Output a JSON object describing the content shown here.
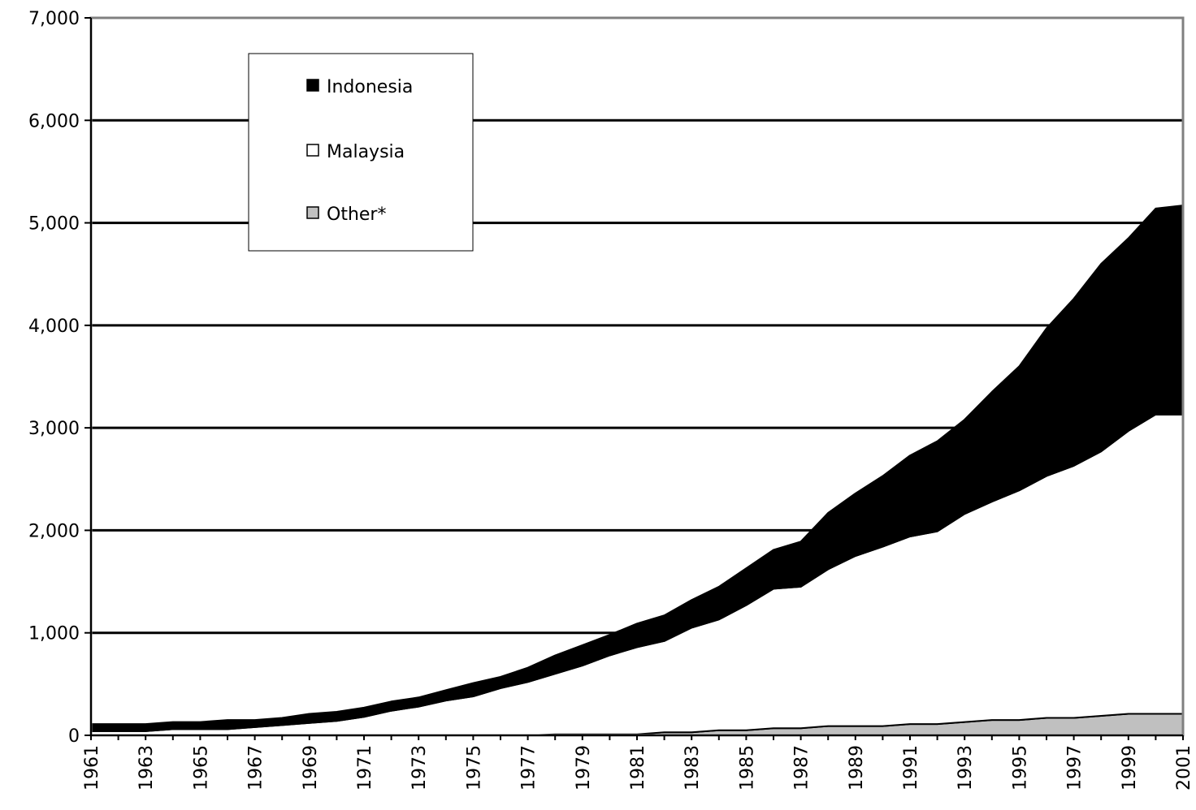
{
  "chart_data": {
    "type": "area",
    "stacked": true,
    "title": "",
    "xlabel": "",
    "ylabel": "",
    "ylim": [
      0,
      7000
    ],
    "y_ticks": [
      0,
      1000,
      2000,
      3000,
      4000,
      5000,
      6000,
      7000
    ],
    "y_tick_labels": [
      "0",
      "1,000",
      "2,000",
      "3,000",
      "4,000",
      "5,000",
      "6,000",
      "7,000"
    ],
    "x_tick_labels": [
      "1961",
      "1963",
      "1965",
      "1967",
      "1969",
      "1971",
      "1973",
      "1975",
      "1977",
      "1979",
      "1981",
      "1983",
      "1985",
      "1987",
      "1989",
      "1991",
      "1993",
      "1995",
      "1997",
      "1999",
      "2001"
    ],
    "x": [
      1961,
      1962,
      1963,
      1964,
      1965,
      1966,
      1967,
      1968,
      1969,
      1970,
      1971,
      1972,
      1973,
      1974,
      1975,
      1976,
      1977,
      1978,
      1979,
      1980,
      1981,
      1982,
      1983,
      1984,
      1985,
      1986,
      1987,
      1988,
      1989,
      1990,
      1991,
      1992,
      1993,
      1994,
      1995,
      1996,
      1997,
      1998,
      1999,
      2000,
      2001
    ],
    "grid": true,
    "legend_position": "top-left",
    "series": [
      {
        "name": "Other*",
        "color": "#c0c0c0",
        "values": [
          0,
          0,
          0,
          0,
          0,
          0,
          0,
          0,
          0,
          0,
          0,
          0,
          0,
          0,
          0,
          0,
          0,
          10,
          10,
          10,
          10,
          30,
          30,
          50,
          50,
          70,
          70,
          90,
          90,
          90,
          110,
          110,
          130,
          150,
          150,
          170,
          170,
          190,
          210,
          210,
          210
        ]
      },
      {
        "name": "Malaysia",
        "color": "#ffffff",
        "values": [
          40,
          40,
          40,
          60,
          60,
          60,
          80,
          100,
          120,
          140,
          180,
          240,
          280,
          340,
          380,
          460,
          520,
          590,
          670,
          770,
          850,
          890,
          1020,
          1080,
          1220,
          1360,
          1380,
          1530,
          1660,
          1750,
          1830,
          1880,
          2030,
          2130,
          2240,
          2360,
          2460,
          2580,
          2760,
          2920,
          2920
        ]
      },
      {
        "name": "Indonesia",
        "color": "#000000",
        "values": [
          70,
          70,
          70,
          70,
          70,
          90,
          70,
          70,
          90,
          90,
          90,
          90,
          90,
          100,
          130,
          110,
          140,
          180,
          200,
          200,
          230,
          250,
          270,
          320,
          360,
          380,
          440,
          550,
          610,
          690,
          790,
          880,
          920,
          1070,
          1210,
          1440,
          1630,
          1830,
          1880,
          2010,
          2040
        ]
      }
    ]
  }
}
